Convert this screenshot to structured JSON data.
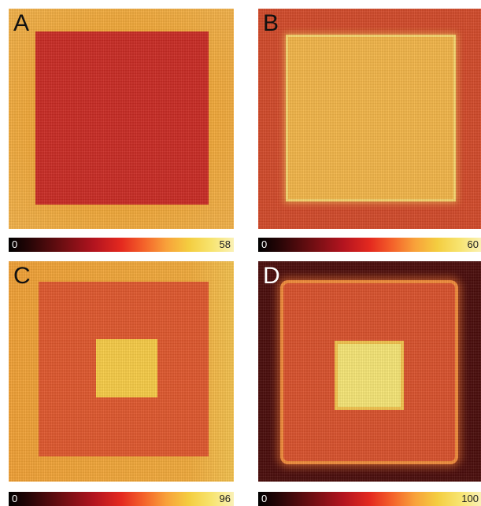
{
  "panels": [
    {
      "id": "a",
      "letter": "A",
      "colorbar": {
        "min": "0",
        "max": "58"
      }
    },
    {
      "id": "b",
      "letter": "B",
      "colorbar": {
        "min": "0",
        "max": "60"
      }
    },
    {
      "id": "c",
      "letter": "C",
      "colorbar": {
        "min": "0",
        "max": "96"
      }
    },
    {
      "id": "d",
      "letter": "D",
      "colorbar": {
        "min": "0",
        "max": "100"
      }
    }
  ],
  "colormap": [
    "#000000",
    "#6e0e12",
    "#e4291f",
    "#f8a13a",
    "#f4cd40",
    "#faf1b6"
  ]
}
